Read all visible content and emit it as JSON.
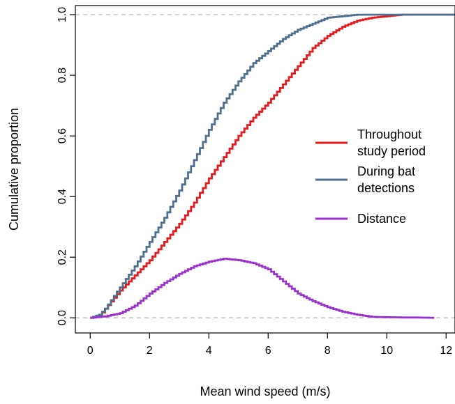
{
  "chart_data": {
    "type": "line",
    "step": true,
    "xlabel": "Mean wind speed (m/s)",
    "ylabel": "Cumulative proportion",
    "xlim": [
      -0.5,
      12.3
    ],
    "ylim": [
      -0.05,
      1.03
    ],
    "x_ticks": [
      0,
      2,
      4,
      6,
      8,
      10,
      12
    ],
    "x_tick_labels": [
      "0",
      "2",
      "4",
      "6",
      "8",
      "10",
      "12"
    ],
    "y_ticks": [
      0,
      0.2,
      0.4,
      0.6,
      0.8,
      1.0
    ],
    "y_tick_labels": [
      "0.0",
      "0.2",
      "0.4",
      "0.6",
      "0.8",
      "1.0"
    ],
    "reference_lines": [
      0,
      1.0
    ],
    "grid": false,
    "legend_position": "right",
    "series": [
      {
        "name": "Throughout study period",
        "color": "#e41a1c",
        "x": [
          0,
          0.3,
          0.5,
          1.0,
          1.5,
          2.0,
          2.5,
          3.0,
          3.5,
          4.0,
          4.5,
          5.0,
          5.5,
          6.0,
          6.5,
          7.0,
          7.5,
          8.0,
          8.5,
          9.0,
          9.5,
          10.0,
          10.5,
          11.0,
          11.5,
          12.3
        ],
        "y": [
          0,
          0.005,
          0.03,
          0.09,
          0.14,
          0.19,
          0.25,
          0.31,
          0.38,
          0.46,
          0.53,
          0.6,
          0.66,
          0.71,
          0.77,
          0.83,
          0.89,
          0.93,
          0.96,
          0.98,
          0.99,
          0.995,
          1.0,
          1.0,
          1.0,
          1.0
        ]
      },
      {
        "name": "During bat detections",
        "color": "#4f6f8f",
        "x": [
          0,
          0.3,
          0.5,
          1.0,
          1.5,
          2.0,
          2.5,
          3.0,
          3.5,
          4.0,
          4.5,
          5.0,
          5.5,
          6.0,
          6.5,
          7.0,
          7.5,
          8.0,
          8.5,
          9.0,
          9.5,
          10.0,
          12.3
        ],
        "y": [
          0,
          0.01,
          0.03,
          0.1,
          0.17,
          0.25,
          0.33,
          0.42,
          0.52,
          0.62,
          0.71,
          0.78,
          0.84,
          0.88,
          0.92,
          0.95,
          0.97,
          0.99,
          0.995,
          1.0,
          1.0,
          1.0,
          1.0
        ]
      },
      {
        "name": "Distance",
        "color": "#9932cc",
        "x": [
          0,
          0.5,
          1.0,
          1.5,
          2.0,
          2.5,
          3.0,
          3.5,
          4.0,
          4.5,
          5.0,
          5.5,
          6.0,
          6.5,
          7.0,
          7.5,
          8.0,
          8.5,
          9.0,
          9.5,
          10.0,
          10.5,
          11.0,
          11.6
        ],
        "y": [
          0,
          0.005,
          0.015,
          0.04,
          0.08,
          0.115,
          0.145,
          0.17,
          0.185,
          0.195,
          0.19,
          0.18,
          0.16,
          0.12,
          0.08,
          0.055,
          0.035,
          0.02,
          0.01,
          0.003,
          0.002,
          0.001,
          0.001,
          0.0
        ]
      }
    ]
  }
}
